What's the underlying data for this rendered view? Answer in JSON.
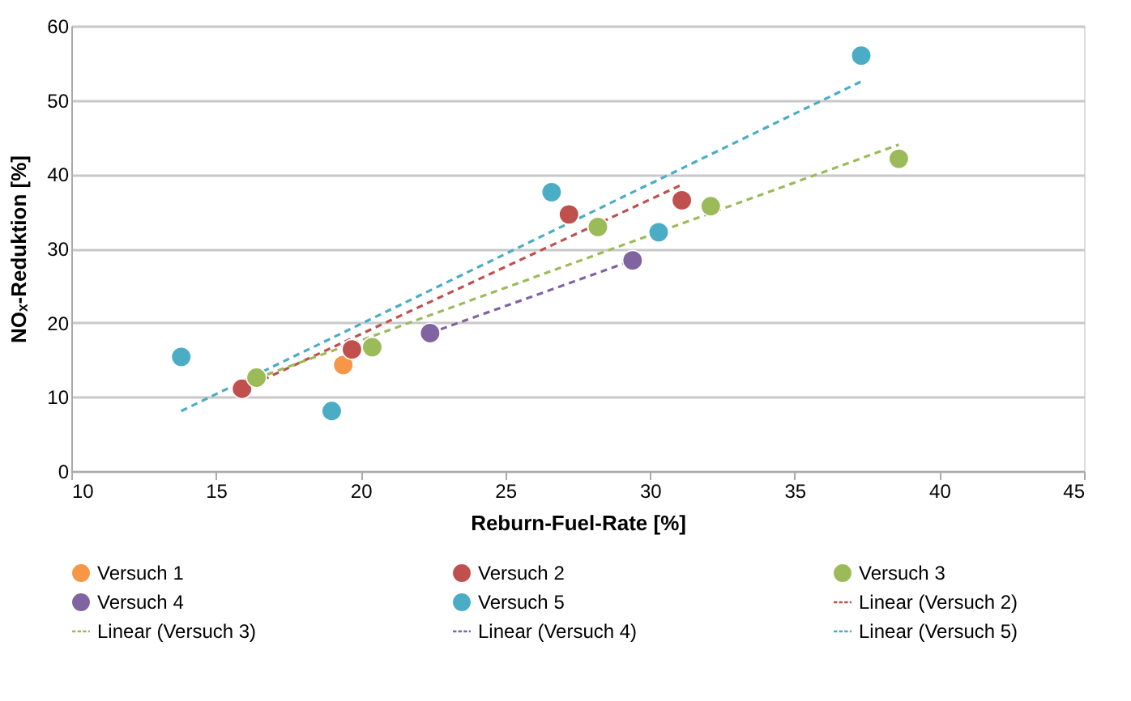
{
  "chart_data": {
    "type": "scatter",
    "xlabel": "Reburn-Fuel-Rate  [%]",
    "ylabel": "NOₓ-Reduktion [%]",
    "xlim": [
      10,
      45
    ],
    "xticks": [
      10,
      15,
      20,
      25,
      30,
      35,
      40,
      45
    ],
    "ylim": [
      0,
      60
    ],
    "yticks": [
      0,
      10,
      20,
      30,
      40,
      50,
      60
    ],
    "grid": "y",
    "legend": "bottom",
    "marker": "circle",
    "series": [
      {
        "name": "Versuch 1",
        "color": "#f79646",
        "x": [
          19.4
        ],
        "values": [
          14.3
        ]
      },
      {
        "name": "Versuch 2",
        "color": "#c0504d",
        "x": [
          15.9,
          19.7,
          27.2,
          31.1
        ],
        "values": [
          11.1,
          16.4,
          34.6,
          36.5
        ]
      },
      {
        "name": "Versuch 3",
        "color": "#9bbb59",
        "x": [
          16.4,
          20.4,
          28.2,
          32.1,
          38.6
        ],
        "values": [
          12.6,
          16.7,
          32.9,
          35.7,
          42.1
        ]
      },
      {
        "name": "Versuch 4",
        "color": "#8064a2",
        "x": [
          22.4,
          29.4
        ],
        "values": [
          18.6,
          28.4
        ]
      },
      {
        "name": "Versuch 5",
        "color": "#4bacc6",
        "x": [
          13.8,
          19.0,
          26.6,
          30.3,
          37.3
        ],
        "values": [
          15.4,
          8.1,
          37.6,
          32.2,
          56.0
        ]
      },
      {
        "name": "Linear (Versuch 2)",
        "type": "line",
        "marker": "none",
        "line_style": "dashed",
        "color": "#c0504d",
        "x": [
          15.9,
          31.1
        ],
        "values": [
          11.0,
          38.6
        ]
      },
      {
        "name": "Linear (Versuch 3)",
        "type": "line",
        "marker": "none",
        "line_style": "dashed",
        "color": "#9bbb59",
        "x": [
          16.4,
          38.6
        ],
        "values": [
          12.5,
          44.0
        ]
      },
      {
        "name": "Linear (Versuch 4)",
        "type": "line",
        "marker": "none",
        "line_style": "dashed",
        "color": "#8064a2",
        "x": [
          22.4,
          29.4
        ],
        "values": [
          18.6,
          28.4
        ]
      },
      {
        "name": "Linear (Versuch 5)",
        "type": "line",
        "marker": "none",
        "line_style": "dashed",
        "color": "#4bacc6",
        "x": [
          13.8,
          37.4
        ],
        "values": [
          8.1,
          52.7
        ]
      }
    ]
  }
}
